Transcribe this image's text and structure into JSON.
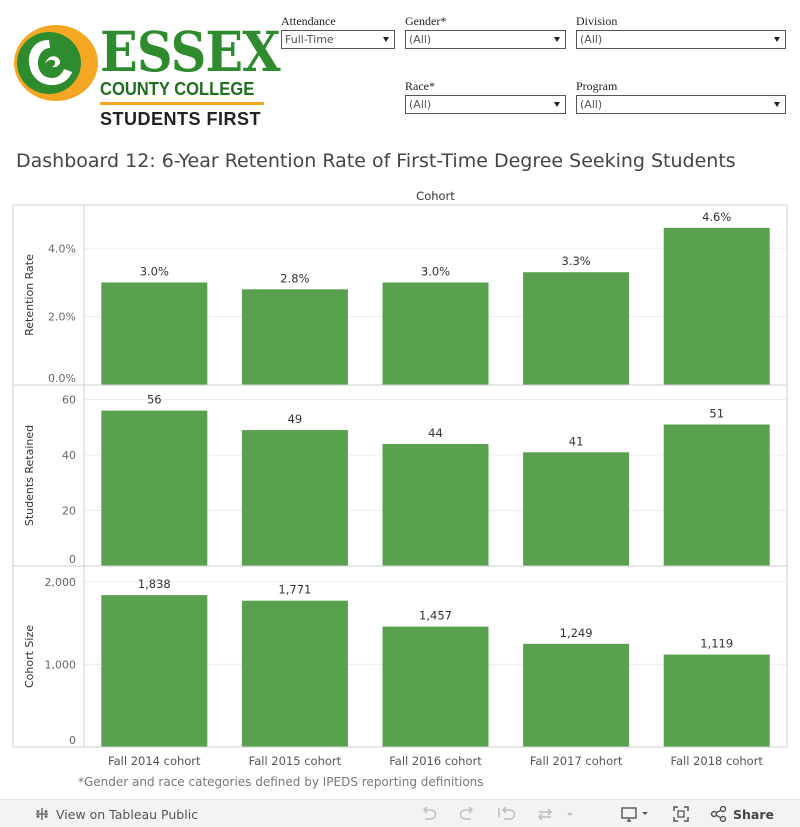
{
  "logo": {
    "name": "ESSEX",
    "line2": "COUNTY COLLEGE",
    "line3": "STUDENTS FIRST",
    "colors": {
      "green": "#2e8b2e",
      "orange": "#f5a623"
    }
  },
  "filters": [
    {
      "label": "Attendance",
      "value": "Full-Time"
    },
    {
      "label": "Gender*",
      "value": "(All)"
    },
    {
      "label": "Division",
      "value": "(All)"
    },
    {
      "label": "Race*",
      "value": "(All)"
    },
    {
      "label": "Program",
      "value": "(All)"
    }
  ],
  "title": "Dashboard 12: 6-Year Retention Rate of First-Time Degree Seeking Students",
  "chart_data": {
    "type": "bar",
    "header": "Cohort",
    "bar_color": "#59a14f",
    "categories": [
      "Fall 2014 cohort",
      "Fall 2015 cohort",
      "Fall 2016 cohort",
      "Fall 2017 cohort",
      "Fall 2018 cohort"
    ],
    "panels": [
      {
        "ylabel": "Retention Rate",
        "values": [
          3.0,
          2.8,
          3.0,
          3.3,
          4.6
        ],
        "labels": [
          "3.0%",
          "2.8%",
          "3.0%",
          "3.3%",
          "4.6%"
        ],
        "ylim": [
          0,
          5.15
        ],
        "ticks": [
          {
            "v": 0,
            "t": "0.0%"
          },
          {
            "v": 2,
            "t": "2.0%"
          },
          {
            "v": 4,
            "t": "4.0%"
          }
        ]
      },
      {
        "ylabel": "Students Retained",
        "values": [
          56,
          49,
          44,
          41,
          51
        ],
        "labels": [
          "56",
          "49",
          "44",
          "41",
          "51"
        ],
        "ylim": [
          0,
          62
        ],
        "ticks": [
          {
            "v": 0,
            "t": "0"
          },
          {
            "v": 20,
            "t": "20"
          },
          {
            "v": 40,
            "t": "40"
          },
          {
            "v": 60,
            "t": "60"
          }
        ]
      },
      {
        "ylabel": "Cohort Size",
        "values": [
          1838,
          1771,
          1457,
          1249,
          1119
        ],
        "labels": [
          "1,838",
          "1,771",
          "1,457",
          "1,249",
          "1,119"
        ],
        "ylim": [
          0,
          2070
        ],
        "ticks": [
          {
            "v": 0,
            "t": "0"
          },
          {
            "v": 1000,
            "t": "1,000"
          },
          {
            "v": 2000,
            "t": "2,000"
          }
        ]
      }
    ]
  },
  "footnote": "*Gender and race categories defined by IPEDS reporting definitions",
  "toolbar": {
    "view_label": "View on Tableau Public",
    "share_label": "Share"
  }
}
